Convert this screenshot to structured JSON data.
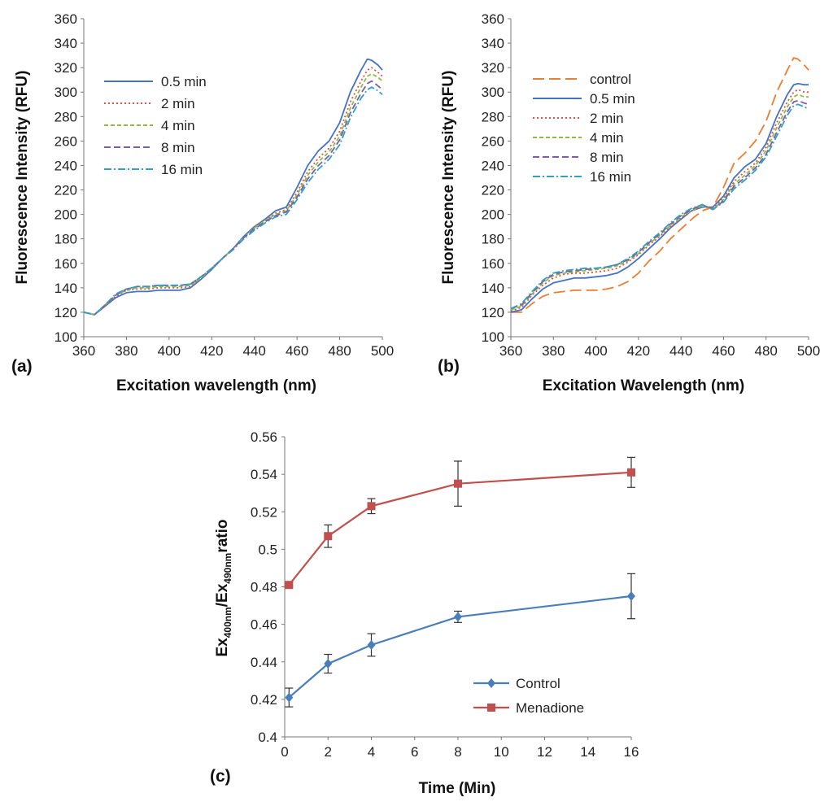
{
  "chart_data": [
    {
      "id": "a",
      "type": "line",
      "panel_label": "(a)",
      "xlabel": "Excitation wavelength (nm)",
      "ylabel": "Fluorescence Intensity (RFU)",
      "xlim": [
        360,
        500
      ],
      "ylim": [
        100,
        360
      ],
      "xticks": [
        360,
        380,
        400,
        420,
        440,
        460,
        480,
        500
      ],
      "yticks": [
        100,
        120,
        140,
        160,
        180,
        200,
        220,
        240,
        260,
        280,
        300,
        320,
        340,
        360
      ],
      "legend_position": "top-left",
      "x": [
        360,
        365,
        370,
        375,
        380,
        385,
        390,
        395,
        400,
        405,
        410,
        415,
        420,
        425,
        430,
        435,
        440,
        445,
        450,
        455,
        460,
        465,
        470,
        475,
        480,
        485,
        490,
        493,
        495,
        498,
        500
      ],
      "series": [
        {
          "name": "0.5 min",
          "color": "#4472c4",
          "dash": "",
          "values": [
            120,
            118,
            125,
            132,
            136,
            137,
            137,
            138,
            138,
            138,
            140,
            147,
            155,
            164,
            172,
            182,
            190,
            196,
            203,
            206,
            222,
            240,
            252,
            260,
            275,
            300,
            318,
            327,
            326,
            322,
            318
          ]
        },
        {
          "name": "2 min",
          "color": "#d9534f",
          "dash": "2,3",
          "values": [
            120,
            118,
            125,
            133,
            138,
            139,
            139,
            140,
            140,
            140,
            141,
            148,
            156,
            164,
            172,
            181,
            189,
            195,
            201,
            204,
            218,
            235,
            246,
            254,
            268,
            292,
            309,
            318,
            320,
            316,
            313
          ]
        },
        {
          "name": "4 min",
          "color": "#8fbc3f",
          "dash": "5,3",
          "values": [
            120,
            118,
            126,
            134,
            138,
            140,
            140,
            141,
            141,
            141,
            142,
            148,
            156,
            164,
            172,
            181,
            189,
            195,
            200,
            203,
            216,
            232,
            243,
            251,
            264,
            287,
            304,
            313,
            315,
            312,
            309
          ]
        },
        {
          "name": "8 min",
          "color": "#7e5ca8",
          "dash": "8,4",
          "values": [
            120,
            118,
            126,
            134,
            139,
            141,
            141,
            142,
            142,
            142,
            143,
            149,
            156,
            164,
            172,
            181,
            188,
            194,
            199,
            202,
            214,
            229,
            240,
            248,
            261,
            283,
            299,
            307,
            309,
            305,
            302
          ]
        },
        {
          "name": "16 min",
          "color": "#31a0c4",
          "dash": "9,3,2,3",
          "values": [
            120,
            118,
            126,
            135,
            139,
            141,
            141,
            142,
            142,
            142,
            143,
            149,
            156,
            164,
            171,
            180,
            187,
            193,
            198,
            200,
            212,
            226,
            237,
            245,
            257,
            279,
            295,
            302,
            304,
            301,
            298
          ]
        }
      ]
    },
    {
      "id": "b",
      "type": "line",
      "panel_label": "(b)",
      "xlabel": "Excitation Wavelength (nm)",
      "ylabel": "Fluorescence Intensity (RFU)",
      "xlim": [
        360,
        500
      ],
      "ylim": [
        100,
        360
      ],
      "xticks": [
        360,
        380,
        400,
        420,
        440,
        460,
        480,
        500
      ],
      "yticks": [
        100,
        120,
        140,
        160,
        180,
        200,
        220,
        240,
        260,
        280,
        300,
        320,
        340,
        360
      ],
      "legend_position": "top-left",
      "x": [
        360,
        365,
        370,
        375,
        380,
        385,
        390,
        395,
        400,
        405,
        410,
        415,
        420,
        425,
        430,
        435,
        440,
        445,
        450,
        455,
        460,
        465,
        470,
        475,
        480,
        485,
        490,
        493,
        495,
        498,
        500
      ],
      "series": [
        {
          "name": "control",
          "color": "#ed7d31",
          "dash": "14,6",
          "values": [
            120,
            120,
            127,
            133,
            136,
            137,
            138,
            138,
            138,
            139,
            141,
            145,
            152,
            162,
            170,
            180,
            188,
            196,
            203,
            206,
            222,
            242,
            250,
            260,
            276,
            300,
            318,
            328,
            327,
            322,
            318
          ]
        },
        {
          "name": "0.5 min",
          "color": "#4472c4",
          "dash": "",
          "values": [
            120,
            122,
            131,
            139,
            144,
            146,
            148,
            148,
            149,
            150,
            152,
            157,
            164,
            172,
            180,
            189,
            196,
            203,
            206,
            206,
            215,
            230,
            239,
            245,
            258,
            280,
            298,
            306,
            307,
            306,
            306
          ]
        },
        {
          "name": "2 min",
          "color": "#d9534f",
          "dash": "2,3",
          "values": [
            121,
            124,
            134,
            142,
            148,
            151,
            152,
            152,
            153,
            154,
            156,
            161,
            167,
            175,
            182,
            190,
            197,
            203,
            207,
            205,
            213,
            227,
            235,
            242,
            255,
            275,
            292,
            300,
            302,
            300,
            300
          ]
        },
        {
          "name": "4 min",
          "color": "#8fbc3f",
          "dash": "5,3",
          "values": [
            122,
            125,
            135,
            144,
            150,
            152,
            153,
            154,
            155,
            156,
            158,
            162,
            168,
            176,
            183,
            191,
            198,
            203,
            207,
            204,
            212,
            225,
            232,
            240,
            252,
            271,
            288,
            296,
            298,
            296,
            296
          ]
        },
        {
          "name": "8 min",
          "color": "#7e5ca8",
          "dash": "8,4",
          "values": [
            123,
            126,
            136,
            145,
            151,
            153,
            154,
            155,
            156,
            157,
            159,
            163,
            169,
            177,
            184,
            192,
            199,
            204,
            208,
            204,
            211,
            223,
            230,
            238,
            249,
            267,
            284,
            292,
            293,
            291,
            290
          ]
        },
        {
          "name": "16 min",
          "color": "#31a0c4",
          "dash": "9,3,2,3",
          "values": [
            123,
            127,
            137,
            146,
            152,
            154,
            155,
            156,
            156,
            157,
            159,
            164,
            170,
            178,
            185,
            193,
            200,
            205,
            208,
            204,
            210,
            221,
            228,
            236,
            247,
            264,
            281,
            289,
            290,
            288,
            286
          ]
        }
      ]
    },
    {
      "id": "c",
      "type": "line",
      "panel_label": "(c)",
      "xlabel": "Time (Min)",
      "ylabel_main": "Ex",
      "ylabel_sub1": "400nm",
      "ylabel_mid": "/Ex",
      "ylabel_sub2": "490nm",
      "ylabel_end": "ratio",
      "xlim": [
        0,
        16
      ],
      "ylim": [
        0.4,
        0.56
      ],
      "xticks": [
        0,
        2,
        4,
        6,
        8,
        10,
        12,
        14,
        16
      ],
      "yticks": [
        0.4,
        0.42,
        0.44,
        0.46,
        0.48,
        0.5,
        0.52,
        0.54,
        0.56
      ],
      "ytick_labels": [
        "0.4",
        "0.42",
        "0.44",
        "0.46",
        "0.48",
        "0.5",
        "0.52",
        "0.54",
        "0.56"
      ],
      "legend_position": "bottom-right",
      "series": [
        {
          "name": "Control",
          "color": "#4a7ebb",
          "marker": "diamond",
          "x": [
            0.2,
            2,
            4,
            8,
            16
          ],
          "values": [
            0.421,
            0.439,
            0.449,
            0.464,
            0.475
          ],
          "errors": [
            0.005,
            0.005,
            0.006,
            0.003,
            0.012
          ]
        },
        {
          "name": "Menadione",
          "color": "#c0504d",
          "marker": "square",
          "x": [
            0.2,
            2,
            4,
            8,
            16
          ],
          "values": [
            0.481,
            0.507,
            0.523,
            0.535,
            0.541
          ],
          "errors": [
            0.0,
            0.006,
            0.004,
            0.012,
            0.008
          ]
        }
      ]
    }
  ]
}
